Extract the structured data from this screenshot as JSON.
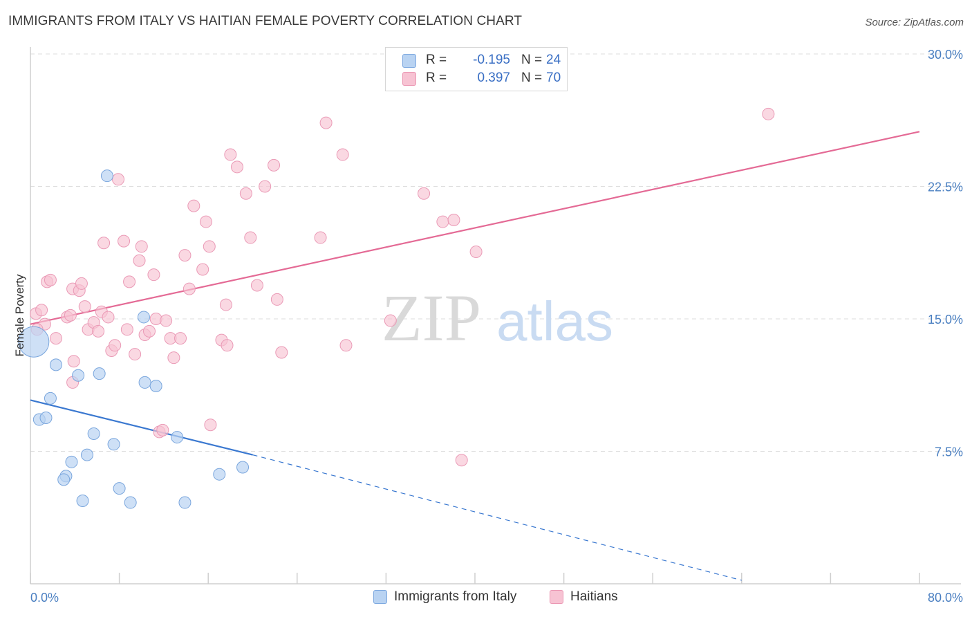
{
  "header": {
    "title": "IMMIGRANTS FROM ITALY VS HAITIAN FEMALE POVERTY CORRELATION CHART",
    "source": "Source: ZipAtlas.com"
  },
  "colors": {
    "blue": "#3a78d0",
    "blue_fill": "#b9d3f2",
    "pink": "#e46a95",
    "pink_fill": "#f7c3d3",
    "grid": "#dedede",
    "tick_text": "#4a7fc1"
  },
  "legend": {
    "rows": [
      {
        "r_label": "R =",
        "r_value": "-0.195",
        "n_label": "N =",
        "n_value": "24"
      },
      {
        "r_label": "R =",
        "r_value": "0.397",
        "n_label": "N =",
        "n_value": "70"
      }
    ]
  },
  "bottom_legend": {
    "series_a": "Immigrants from Italy",
    "series_b": "Haitians"
  },
  "watermark": {
    "zip": "ZIP",
    "atlas": "atlas"
  },
  "chart_data": {
    "type": "scatter",
    "title": "IMMIGRANTS FROM ITALY VS HAITIAN FEMALE POVERTY CORRELATION CHART",
    "xlabel": "",
    "ylabel": "Female Poverty",
    "xlim": [
      0,
      80
    ],
    "ylim": [
      0,
      30
    ],
    "x_tick_labels": [
      "0.0%",
      "80.0%"
    ],
    "y_ticks": [
      7.5,
      15.0,
      22.5,
      30.0
    ],
    "y_tick_labels": [
      "7.5%",
      "15.0%",
      "22.5%",
      "30.0%"
    ],
    "grid": true,
    "series": [
      {
        "name": "Immigrants from Italy",
        "r": -0.195,
        "n": 24,
        "trend": {
          "x0": 0,
          "y0": 10.4,
          "x1": 20.0,
          "y1": 7.3,
          "dashed_to_x": 64.0,
          "dashed_to_y": 0.2
        },
        "points": [
          [
            0.3,
            13.7
          ],
          [
            2.3,
            12.4
          ],
          [
            1.8,
            10.5
          ],
          [
            0.8,
            9.3
          ],
          [
            1.4,
            9.4
          ],
          [
            4.3,
            11.8
          ],
          [
            6.2,
            11.9
          ],
          [
            5.7,
            8.5
          ],
          [
            7.5,
            7.9
          ],
          [
            5.1,
            7.3
          ],
          [
            3.7,
            6.9
          ],
          [
            3.2,
            6.1
          ],
          [
            3.0,
            5.9
          ],
          [
            8.0,
            5.4
          ],
          [
            4.7,
            4.7
          ],
          [
            9.0,
            4.6
          ],
          [
            10.2,
            15.1
          ],
          [
            10.3,
            11.4
          ],
          [
            11.3,
            11.2
          ],
          [
            13.2,
            8.3
          ],
          [
            13.9,
            4.6
          ],
          [
            17.0,
            6.2
          ],
          [
            19.1,
            6.6
          ],
          [
            6.9,
            23.1
          ]
        ]
      },
      {
        "name": "Haitians",
        "r": 0.397,
        "n": 70,
        "trend": {
          "x0": 0,
          "y0": 14.7,
          "x1": 80,
          "y1": 25.6
        },
        "points": [
          [
            0.5,
            15.3
          ],
          [
            1.0,
            15.5
          ],
          [
            1.3,
            14.7
          ],
          [
            0.6,
            14.4
          ],
          [
            1.5,
            17.1
          ],
          [
            1.8,
            17.2
          ],
          [
            2.3,
            13.9
          ],
          [
            3.3,
            15.1
          ],
          [
            3.6,
            15.2
          ],
          [
            3.8,
            16.7
          ],
          [
            4.4,
            16.6
          ],
          [
            4.6,
            17.0
          ],
          [
            4.9,
            15.7
          ],
          [
            3.8,
            11.4
          ],
          [
            3.9,
            12.6
          ],
          [
            5.2,
            14.4
          ],
          [
            5.7,
            14.8
          ],
          [
            6.1,
            14.3
          ],
          [
            6.4,
            15.4
          ],
          [
            6.6,
            19.3
          ],
          [
            7.0,
            15.1
          ],
          [
            7.3,
            13.2
          ],
          [
            7.6,
            13.5
          ],
          [
            7.9,
            22.9
          ],
          [
            8.4,
            19.4
          ],
          [
            8.7,
            14.4
          ],
          [
            8.9,
            17.1
          ],
          [
            9.4,
            13.0
          ],
          [
            9.8,
            18.3
          ],
          [
            10.0,
            19.1
          ],
          [
            10.3,
            14.1
          ],
          [
            10.7,
            14.3
          ],
          [
            11.1,
            17.5
          ],
          [
            11.3,
            15.0
          ],
          [
            11.6,
            8.6
          ],
          [
            11.9,
            8.7
          ],
          [
            12.2,
            14.9
          ],
          [
            12.6,
            13.9
          ],
          [
            12.9,
            12.8
          ],
          [
            13.5,
            13.9
          ],
          [
            13.9,
            18.6
          ],
          [
            14.3,
            16.7
          ],
          [
            14.7,
            21.4
          ],
          [
            15.5,
            17.8
          ],
          [
            15.8,
            20.5
          ],
          [
            16.1,
            19.1
          ],
          [
            16.2,
            9.0
          ],
          [
            17.2,
            13.8
          ],
          [
            17.6,
            15.8
          ],
          [
            17.7,
            13.5
          ],
          [
            18.0,
            24.3
          ],
          [
            18.6,
            23.6
          ],
          [
            19.4,
            22.1
          ],
          [
            19.8,
            19.6
          ],
          [
            20.4,
            16.9
          ],
          [
            21.1,
            22.5
          ],
          [
            21.9,
            23.7
          ],
          [
            22.2,
            16.1
          ],
          [
            22.6,
            13.1
          ],
          [
            26.1,
            19.6
          ],
          [
            26.6,
            26.1
          ],
          [
            28.1,
            24.3
          ],
          [
            28.4,
            13.5
          ],
          [
            32.4,
            14.9
          ],
          [
            35.4,
            22.1
          ],
          [
            37.1,
            20.5
          ],
          [
            38.1,
            20.6
          ],
          [
            38.8,
            7.0
          ],
          [
            40.1,
            18.8
          ],
          [
            66.4,
            26.6
          ]
        ]
      }
    ]
  }
}
